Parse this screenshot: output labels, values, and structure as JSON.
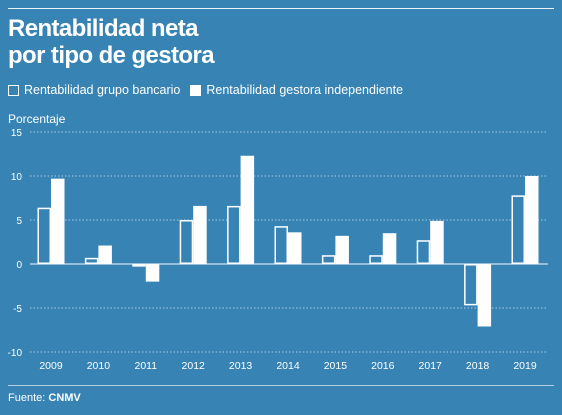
{
  "title_line1": "Rentabilidad neta",
  "title_line2": "por tipo de gestora",
  "legend": {
    "bank": "Rentabilidad grupo bancario",
    "independent": "Rentabilidad gestora independiente"
  },
  "source_label": "Fuente:",
  "source_name": "CNMV",
  "colors": {
    "background": "#3784b4",
    "bars": "#ffffff"
  },
  "chart_data": {
    "type": "bar",
    "ylabel": "Porcentaje",
    "xlabel": "",
    "ylim": [
      -10,
      15
    ],
    "yticks": [
      15,
      10,
      5,
      0,
      -5,
      -10
    ],
    "ytick_labels": [
      "15",
      "10",
      "5",
      "0",
      "-5",
      "-10"
    ],
    "grid": true,
    "legend_position": "top-left",
    "categories": [
      "2009",
      "2010",
      "2011",
      "2012",
      "2013",
      "2014",
      "2015",
      "2016",
      "2017",
      "2018",
      "2019"
    ],
    "series": [
      {
        "name": "Rentabilidad grupo bancario",
        "style": "outline",
        "values": [
          6.4,
          0.7,
          -0.3,
          5.0,
          6.6,
          4.3,
          1.0,
          1.0,
          2.7,
          -4.7,
          7.8
        ]
      },
      {
        "name": "Rentabilidad gestora independiente",
        "style": "filled",
        "values": [
          9.7,
          2.1,
          -2.0,
          6.6,
          12.3,
          3.6,
          3.2,
          3.5,
          4.9,
          -7.1,
          10.0
        ]
      }
    ]
  }
}
